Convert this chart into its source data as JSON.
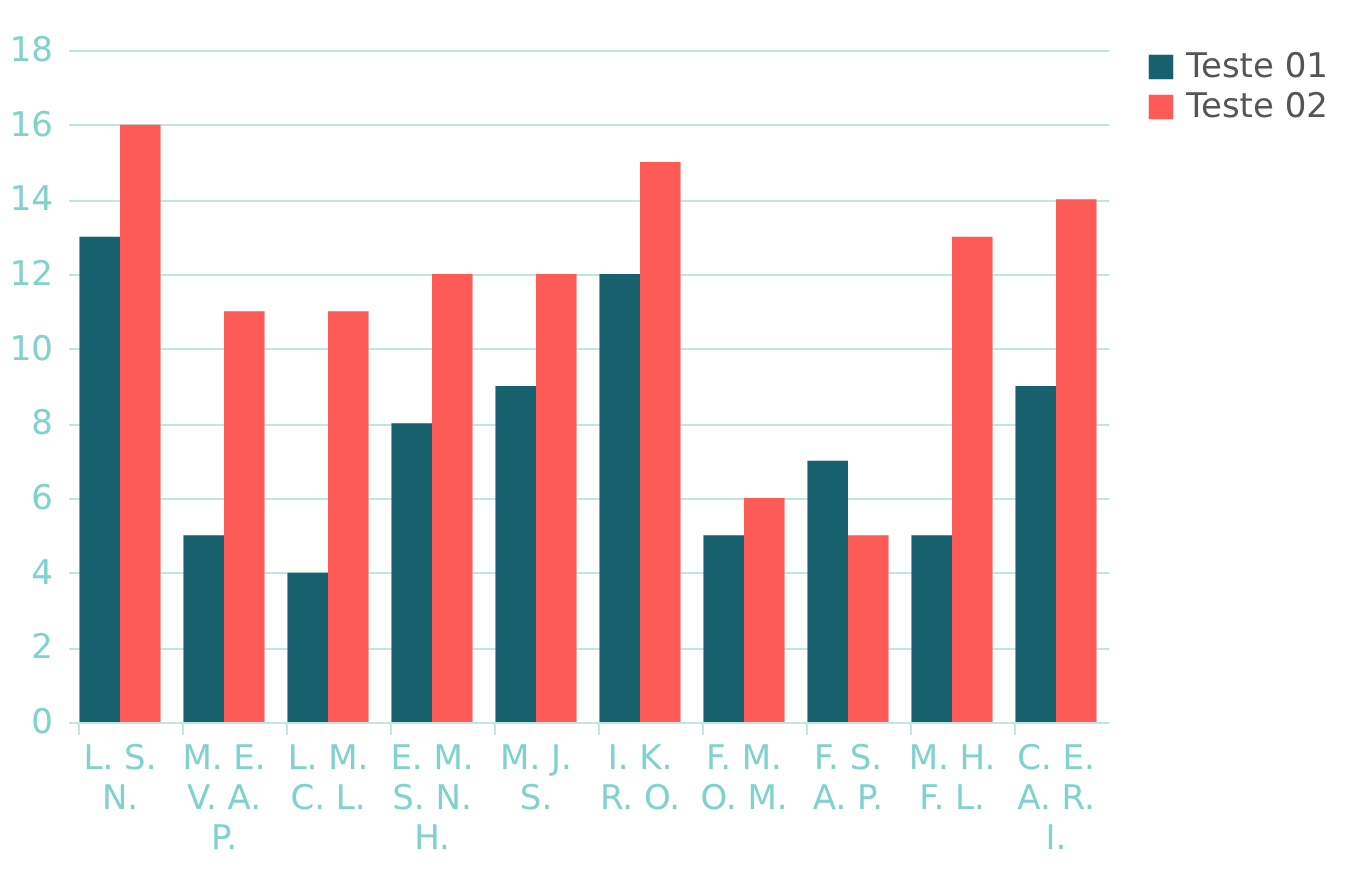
{
  "chart_data": {
    "type": "bar",
    "categories": [
      "L. S. N.",
      "M. E. V. A. P.",
      "L. M. C. L.",
      "E. M. S. N. H.",
      "M. J. S.",
      "I. K. R. O.",
      "F. M. O. M.",
      "F. S. A. P.",
      "M. H. F. L.",
      "C. E. A. R. I."
    ],
    "series": [
      {
        "name": "Teste 01",
        "color": "#17616e",
        "values": [
          13,
          5,
          4,
          8,
          9,
          12,
          5,
          7,
          5,
          9
        ]
      },
      {
        "name": "Teste 02",
        "color": "#fe5b56",
        "values": [
          16,
          11,
          11,
          12,
          12,
          15,
          6,
          5,
          13,
          14
        ]
      }
    ],
    "ylim": [
      0,
      18
    ],
    "yticks": [
      0,
      2,
      4,
      6,
      8,
      10,
      12,
      14,
      16,
      18
    ],
    "grid": "y",
    "legend": "right"
  }
}
